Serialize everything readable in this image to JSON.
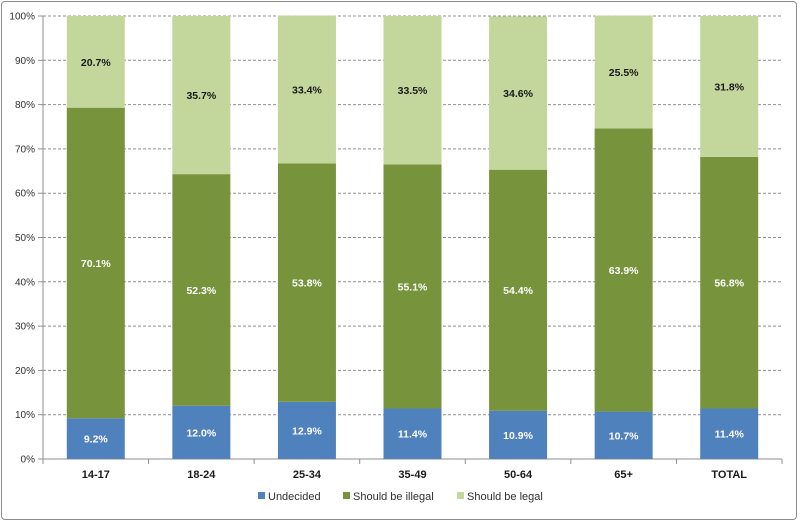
{
  "chart_data": {
    "type": "bar",
    "stacked": true,
    "percent_axis": true,
    "categories": [
      "14-17",
      "18-24",
      "25-34",
      "35-49",
      "50-64",
      "65+",
      "TOTAL"
    ],
    "series": [
      {
        "name": "Undecided",
        "color": "#4f81bd",
        "values": [
          9.2,
          12.0,
          12.9,
          11.4,
          10.9,
          10.7,
          11.4
        ],
        "label_color": "#ffffff"
      },
      {
        "name": "Should be illegal",
        "color": "#77933c",
        "values": [
          70.1,
          52.3,
          53.8,
          55.1,
          54.4,
          63.9,
          56.8
        ],
        "label_color": "#ffffff"
      },
      {
        "name": "Should be legal",
        "color": "#c3d69b",
        "values": [
          20.7,
          35.7,
          33.4,
          33.5,
          34.6,
          25.5,
          31.8
        ],
        "label_color": "#1a1a1a"
      }
    ],
    "value_labels": [
      [
        "9.2%",
        "12.0%",
        "12.9%",
        "11.4%",
        "10.9%",
        "10.7%",
        "11.4%"
      ],
      [
        "70.1%",
        "52.3%",
        "53.8%",
        "55.1%",
        "54.4%",
        "63.9%",
        "56.8%"
      ],
      [
        "20.7%",
        "35.7%",
        "33.4%",
        "33.5%",
        "34.6%",
        "25.5%",
        "31.8%"
      ]
    ],
    "y_ticks": [
      "0%",
      "10%",
      "20%",
      "30%",
      "40%",
      "50%",
      "60%",
      "70%",
      "80%",
      "90%",
      "100%"
    ],
    "ylim": [
      0,
      100
    ],
    "grid": "horizontal dashed",
    "legend_position": "bottom",
    "title": "",
    "xlabel": "",
    "ylabel": ""
  }
}
